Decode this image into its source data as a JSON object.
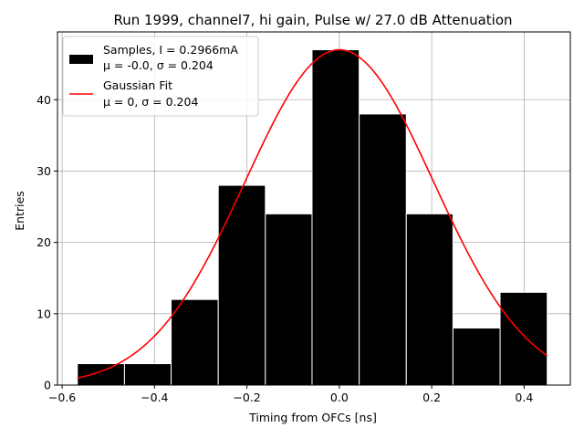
{
  "chart_data": {
    "type": "bar",
    "title": "Run 1999, channel7, hi gain, Pulse w/ 27.0 dB Attenuation",
    "xlabel": "Timing from OFCs [ns]",
    "ylabel": "Entries",
    "xlim": [
      -0.61,
      0.5
    ],
    "ylim": [
      0,
      49.5
    ],
    "xticks": [
      -0.6,
      -0.4,
      -0.2,
      0.0,
      0.2,
      0.4
    ],
    "xtick_labels": [
      "−0.6",
      "−0.4",
      "−0.2",
      "0.0",
      "0.2",
      "0.4"
    ],
    "yticks": [
      0,
      10,
      20,
      30,
      40
    ],
    "ytick_labels": [
      "0",
      "10",
      "20",
      "30",
      "40"
    ],
    "grid": true,
    "legend_position": "upper-left",
    "histogram": {
      "bin_edges": [
        -0.567,
        -0.465,
        -0.364,
        -0.262,
        -0.16,
        -0.059,
        0.043,
        0.145,
        0.246,
        0.348,
        0.45
      ],
      "counts": [
        3,
        3,
        12,
        28,
        24,
        47,
        38,
        24,
        8,
        13
      ],
      "color": "#000000",
      "edge_color": "#ffffff",
      "legend_line1": "Samples, I = 0.2966mA",
      "legend_line2": "μ = -0.0, σ = 0.204"
    },
    "fit": {
      "mu": 0,
      "sigma": 0.204,
      "amplitude": 47,
      "x_range": [
        -0.567,
        0.45
      ],
      "color": "#ff0000",
      "legend_line1": "Gaussian Fit",
      "legend_line2": "μ = 0, σ = 0.204"
    }
  }
}
